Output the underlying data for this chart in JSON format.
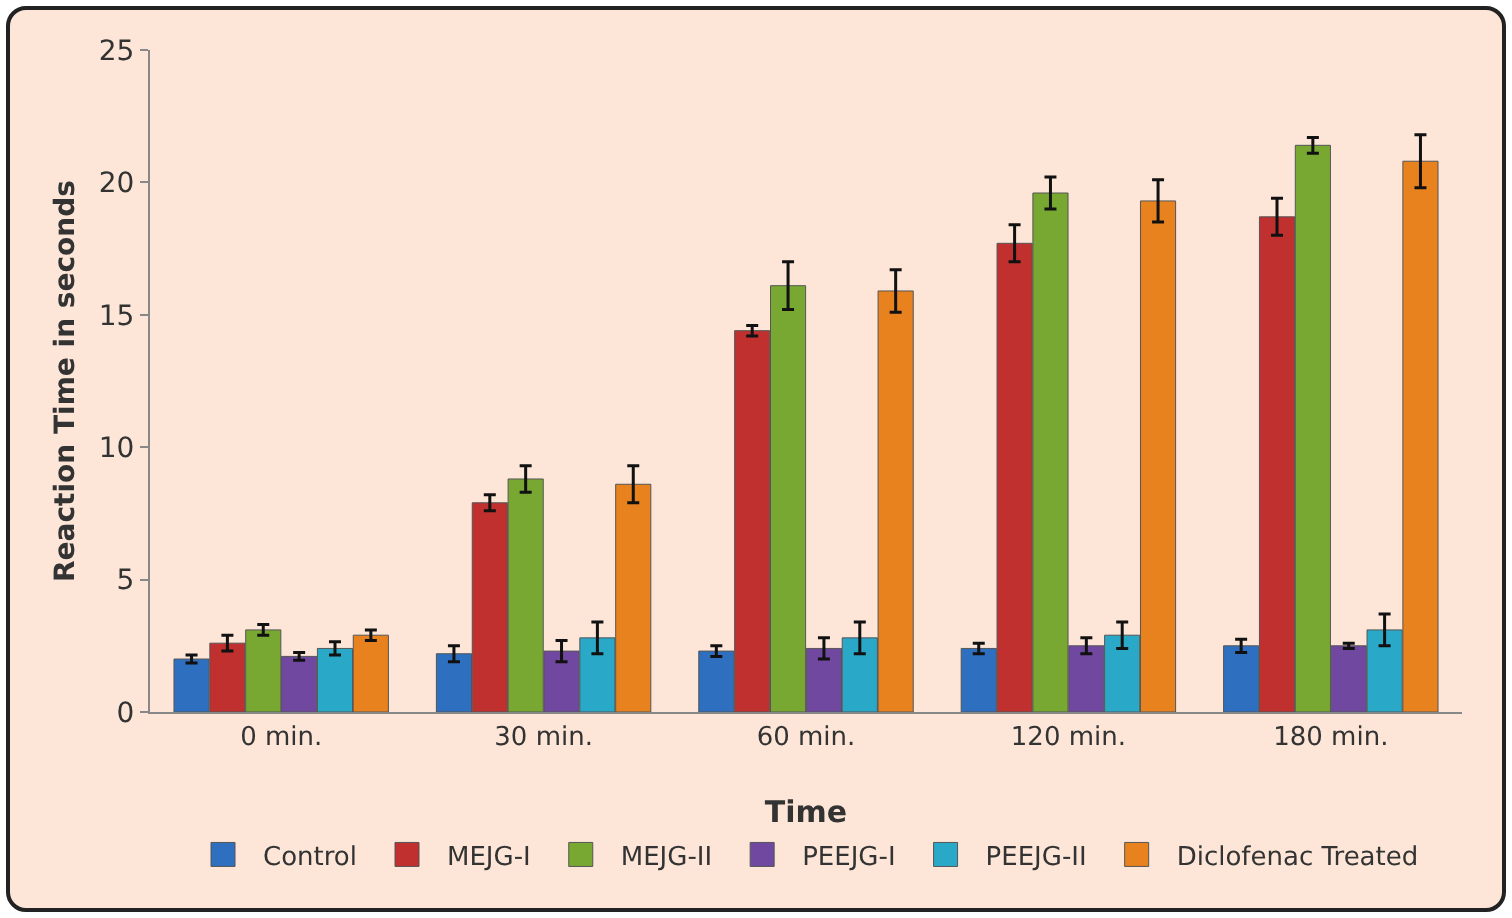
{
  "chart_data": {
    "type": "bar",
    "xlabel": "Time",
    "ylabel": "Reaction Time in seconds",
    "categories": [
      "0 min.",
      "30 min.",
      "60 min.",
      "120 min.",
      "180 min."
    ],
    "series": [
      {
        "name": "Control",
        "color": "#2e6fc0",
        "values": [
          2.0,
          2.2,
          2.3,
          2.4,
          2.5
        ],
        "errors": [
          0.15,
          0.3,
          0.2,
          0.2,
          0.25
        ]
      },
      {
        "name": "MEJG-I",
        "color": "#c0302f",
        "values": [
          2.6,
          7.9,
          14.4,
          17.7,
          18.7
        ],
        "errors": [
          0.3,
          0.3,
          0.2,
          0.7,
          0.7
        ]
      },
      {
        "name": "MEJG-II",
        "color": "#78a832",
        "values": [
          3.1,
          8.8,
          16.1,
          19.6,
          21.4
        ],
        "errors": [
          0.2,
          0.5,
          0.9,
          0.6,
          0.3
        ]
      },
      {
        "name": "PEEJG-I",
        "color": "#7048a0",
        "values": [
          2.1,
          2.3,
          2.4,
          2.5,
          2.5
        ],
        "errors": [
          0.15,
          0.4,
          0.4,
          0.3,
          0.1
        ]
      },
      {
        "name": "PEEJG-II",
        "color": "#2aa8c8",
        "values": [
          2.4,
          2.8,
          2.8,
          2.9,
          3.1
        ],
        "errors": [
          0.25,
          0.6,
          0.6,
          0.5,
          0.6
        ]
      },
      {
        "name": "Diclofenac Treated",
        "color": "#e8821e",
        "values": [
          2.9,
          8.6,
          15.9,
          19.3,
          20.8
        ],
        "errors": [
          0.2,
          0.7,
          0.8,
          0.8,
          1.0
        ]
      }
    ],
    "ylim": [
      0,
      25
    ],
    "yticks": [
      0,
      5,
      10,
      15,
      20,
      25
    ],
    "grid": false,
    "legend": "bottom"
  }
}
